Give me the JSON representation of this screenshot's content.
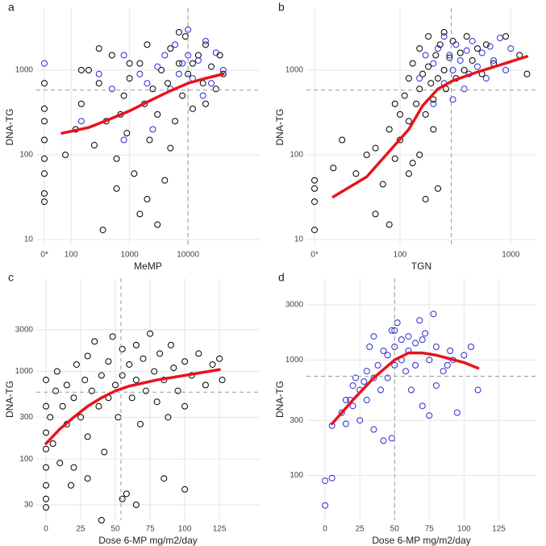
{
  "chart_data": [
    {
      "type": "scatter",
      "panel": "a",
      "xlabel": "MeMP",
      "ylabel": "DNA-TG",
      "xscale": "log",
      "yscale": "log",
      "xlim": [
        48,
        168000
      ],
      "ylim": [
        8.4,
        5400
      ],
      "xticks": [
        {
          "value": 0,
          "label": "0*"
        },
        100,
        1000,
        10000
      ],
      "yticks": [
        10,
        100,
        1000
      ],
      "grid": true,
      "ref_x": 10000,
      "ref_y": 580,
      "series": [
        {
          "color": "#000000",
          "x": [
            0,
            0,
            0,
            0,
            0,
            0,
            0,
            0,
            80,
            120,
            150,
            200,
            250,
            300,
            400,
            500,
            600,
            700,
            800,
            900,
            1000,
            1200,
            1500,
            1800,
            2000,
            2200,
            2500,
            3000,
            3500,
            4000,
            4500,
            5000,
            6000,
            7000,
            8000,
            9000,
            10000,
            12000,
            15000,
            18000,
            20000,
            25000,
            30000,
            35000,
            40000,
            2000,
            1500,
            3000,
            600,
            350,
            1000,
            5000,
            7000,
            12000,
            20000,
            300,
            150
          ],
          "values": [
            700,
            350,
            250,
            150,
            90,
            60,
            35,
            28,
            100,
            200,
            400,
            1000,
            130,
            700,
            250,
            1500,
            90,
            300,
            500,
            180,
            800,
            60,
            1200,
            400,
            2000,
            150,
            600,
            300,
            1000,
            50,
            700,
            1800,
            250,
            1200,
            500,
            2500,
            900,
            350,
            1500,
            700,
            2000,
            1100,
            600,
            1500,
            900,
            30,
            20,
            15,
            40,
            13,
            1200,
            120,
            2800,
            1200,
            400,
            1800,
            1000
          ]
        },
        {
          "color": "#2b2bd6",
          "x": [
            0,
            150,
            300,
            500,
            800,
            1500,
            2000,
            3000,
            4000,
            5000,
            6000,
            7000,
            8000,
            10000,
            12000,
            15000,
            20000,
            25000,
            30000,
            10000,
            2500,
            800,
            18000,
            40000
          ],
          "values": [
            1200,
            250,
            900,
            600,
            1500,
            900,
            700,
            1100,
            1500,
            600,
            2000,
            900,
            1200,
            1500,
            800,
            1300,
            2200,
            700,
            1600,
            3000,
            200,
            150,
            500,
            1000
          ]
        }
      ],
      "fit": {
        "color": "#e8141c",
        "x": [
          70,
          200,
          500,
          1000,
          2000,
          5000,
          10000,
          20000,
          40000
        ],
        "values": [
          180,
          210,
          270,
          330,
          420,
          570,
          700,
          800,
          900
        ]
      }
    },
    {
      "type": "scatter",
      "panel": "b",
      "xlabel": "TGN",
      "ylabel": "DNA-TG",
      "xscale": "log",
      "yscale": "log",
      "xlim": [
        20,
        1700
      ],
      "ylim": [
        8.4,
        5400
      ],
      "xticks": [
        {
          "value": 0,
          "label": "0*"
        },
        100,
        1000
      ],
      "yticks": [
        10,
        100,
        1000
      ],
      "grid": true,
      "ref_x": 290,
      "ref_y": 580,
      "series": [
        {
          "color": "#000000",
          "x": [
            0,
            0,
            0,
            0,
            25,
            30,
            40,
            50,
            60,
            70,
            80,
            90,
            100,
            100,
            110,
            120,
            120,
            130,
            140,
            150,
            150,
            160,
            170,
            180,
            180,
            190,
            200,
            210,
            220,
            230,
            250,
            260,
            280,
            300,
            320,
            350,
            380,
            400,
            450,
            500,
            550,
            600,
            700,
            900,
            1200,
            1400,
            60,
            80,
            120,
            150,
            200,
            250,
            130,
            90,
            170,
            220
          ],
          "values": [
            50,
            40,
            28,
            13,
            70,
            150,
            60,
            100,
            120,
            45,
            200,
            90,
            300,
            150,
            500,
            800,
            250,
            1200,
            400,
            1800,
            600,
            900,
            300,
            2500,
            1100,
            700,
            450,
            1500,
            800,
            2000,
            1000,
            600,
            1400,
            2200,
            800,
            1600,
            1000,
            2500,
            1300,
            1800,
            900,
            2000,
            1200,
            2500,
            1500,
            900,
            20,
            15,
            60,
            100,
            200,
            2800,
            80,
            400,
            30,
            40
          ]
        },
        {
          "color": "#2b2bd6",
          "x": [
            150,
            170,
            200,
            220,
            250,
            280,
            300,
            320,
            350,
            380,
            400,
            420,
            450,
            500,
            550,
            600,
            650,
            700,
            800,
            900,
            1000,
            200,
            300,
            250
          ],
          "values": [
            800,
            1500,
            1200,
            1800,
            700,
            1500,
            1000,
            2000,
            1300,
            600,
            1700,
            900,
            2200,
            1100,
            1600,
            800,
            1900,
            1300,
            2400,
            1000,
            1800,
            400,
            450,
            2500
          ]
        }
      ],
      "fit": {
        "color": "#e8141c",
        "x": [
          25,
          50,
          80,
          120,
          160,
          220,
          300,
          500,
          800,
          1400
        ],
        "values": [
          32,
          55,
          110,
          200,
          380,
          600,
          750,
          950,
          1150,
          1450
        ]
      }
    },
    {
      "type": "scatter",
      "panel": "c",
      "xlabel": "Dose 6-MP mg/m2/day",
      "ylabel": "DNA-TG",
      "xscale": "linear",
      "yscale": "log",
      "xlim": [
        -7,
        154
      ],
      "ylim": [
        20,
        11600
      ],
      "xticks": [
        0,
        25,
        50,
        75,
        100,
        125
      ],
      "yticks": [
        30,
        100,
        300,
        1000,
        3000
      ],
      "grid": true,
      "ref_x": 54,
      "ref_y": 580,
      "series": [
        {
          "color": "#000000",
          "x": [
            0,
            0,
            0,
            0,
            0,
            0,
            0,
            0,
            3,
            5,
            7,
            8,
            10,
            12,
            15,
            15,
            18,
            20,
            22,
            25,
            28,
            30,
            30,
            33,
            35,
            38,
            40,
            42,
            45,
            45,
            48,
            50,
            52,
            55,
            55,
            58,
            60,
            62,
            65,
            65,
            68,
            70,
            72,
            75,
            78,
            80,
            82,
            85,
            88,
            90,
            92,
            95,
            100,
            100,
            105,
            110,
            115,
            120,
            125,
            127,
            40,
            55,
            65,
            85,
            100,
            30,
            20
          ],
          "values": [
            800,
            400,
            200,
            130,
            80,
            50,
            35,
            28,
            300,
            150,
            600,
            1000,
            90,
            400,
            250,
            700,
            50,
            500,
            1200,
            300,
            800,
            180,
            1500,
            600,
            2200,
            400,
            900,
            120,
            1300,
            500,
            2500,
            700,
            300,
            1800,
            900,
            40,
            1200,
            500,
            2000,
            800,
            250,
            1400,
            600,
            2700,
            1000,
            450,
            1600,
            800,
            300,
            2000,
            1100,
            600,
            1300,
            400,
            900,
            1600,
            700,
            1200,
            1400,
            800,
            20,
            35,
            30,
            60,
            45,
            60,
            80
          ]
        }
      ],
      "fit": {
        "color": "#e8141c",
        "x": [
          0,
          10,
          20,
          30,
          40,
          50,
          60,
          80,
          100,
          125
        ],
        "values": [
          150,
          220,
          300,
          400,
          500,
          600,
          680,
          800,
          900,
          1050
        ]
      }
    },
    {
      "type": "scatter",
      "panel": "d",
      "xlabel": "Dose 6-MP mg/m2/day",
      "ylabel": "DNA-TG",
      "xscale": "linear",
      "yscale": "log",
      "xlim": [
        -13.4,
        152
      ],
      "ylim": [
        41,
        5100
      ],
      "xticks": [
        0,
        25,
        50,
        75,
        100,
        125
      ],
      "yticks": [
        100,
        300,
        1000,
        3000
      ],
      "grid": true,
      "ref_x": 50,
      "ref_y": 723,
      "series": [
        {
          "color": "#2b2bd6",
          "x": [
            0,
            0,
            5,
            5,
            12,
            15,
            18,
            20,
            20,
            22,
            25,
            25,
            28,
            30,
            30,
            32,
            35,
            35,
            35,
            38,
            40,
            42,
            45,
            45,
            48,
            48,
            50,
            50,
            52,
            55,
            55,
            58,
            60,
            60,
            62,
            65,
            65,
            68,
            70,
            70,
            72,
            75,
            75,
            78,
            80,
            80,
            85,
            88,
            90,
            92,
            95,
            100,
            105,
            110,
            50,
            42,
            15
          ],
          "values": [
            90,
            55,
            95,
            270,
            350,
            280,
            450,
            600,
            400,
            700,
            550,
            300,
            650,
            800,
            450,
            1300,
            250,
            1600,
            700,
            900,
            550,
            200,
            1100,
            700,
            1800,
            210,
            1300,
            900,
            2100,
            1000,
            1500,
            800,
            1600,
            1200,
            550,
            1400,
            900,
            2200,
            1500,
            400,
            1700,
            1000,
            330,
            2500,
            1300,
            600,
            800,
            900,
            1200,
            1000,
            350,
            1100,
            1300,
            550,
            1800,
            1200,
            450
          ]
        }
      ],
      "fit": {
        "color": "#e8141c",
        "x": [
          5,
          20,
          35,
          50,
          60,
          70,
          80,
          100,
          110
        ],
        "values": [
          280,
          450,
          700,
          1000,
          1150,
          1150,
          1100,
          950,
          850
        ]
      }
    }
  ]
}
